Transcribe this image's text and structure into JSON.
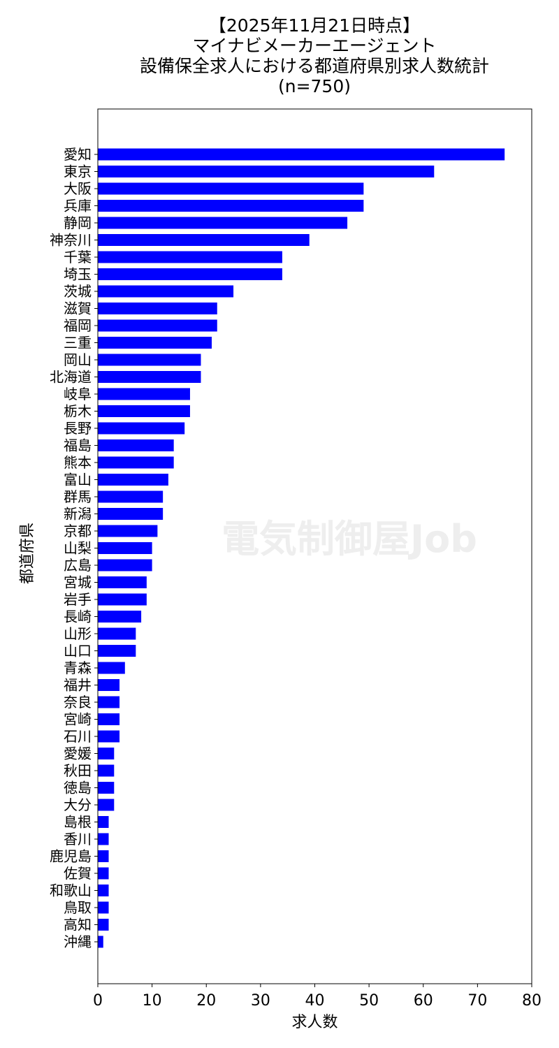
{
  "chart_data": {
    "type": "bar",
    "orientation": "horizontal",
    "title_lines": [
      "【2025年11月21日時点】",
      "マイナビメーカーエージェント",
      "設備保全求人における都道府県別求人数統計",
      "(n=750)"
    ],
    "xlabel": "求人数",
    "ylabel": "都道府県",
    "xlim": [
      0,
      80
    ],
    "xticks": [
      0,
      10,
      20,
      30,
      40,
      50,
      60,
      70,
      80
    ],
    "grid": false,
    "bar_color": "#0000ff",
    "watermark": "電気制御屋Job",
    "categories": [
      "愛知",
      "東京",
      "大阪",
      "兵庫",
      "静岡",
      "神奈川",
      "千葉",
      "埼玉",
      "茨城",
      "滋賀",
      "福岡",
      "三重",
      "岡山",
      "北海道",
      "岐阜",
      "栃木",
      "長野",
      "福島",
      "熊本",
      "富山",
      "群馬",
      "新潟",
      "京都",
      "山梨",
      "広島",
      "宮城",
      "岩手",
      "長崎",
      "山形",
      "山口",
      "青森",
      "福井",
      "奈良",
      "宮崎",
      "石川",
      "愛媛",
      "秋田",
      "徳島",
      "大分",
      "島根",
      "香川",
      "鹿児島",
      "佐賀",
      "和歌山",
      "鳥取",
      "高知",
      "沖縄"
    ],
    "values": [
      75,
      62,
      49,
      49,
      46,
      39,
      34,
      34,
      25,
      22,
      22,
      21,
      19,
      19,
      17,
      17,
      16,
      14,
      14,
      13,
      12,
      12,
      11,
      10,
      10,
      9,
      9,
      8,
      7,
      7,
      5,
      4,
      4,
      4,
      4,
      3,
      3,
      3,
      3,
      2,
      2,
      2,
      2,
      2,
      2,
      2,
      1
    ]
  }
}
